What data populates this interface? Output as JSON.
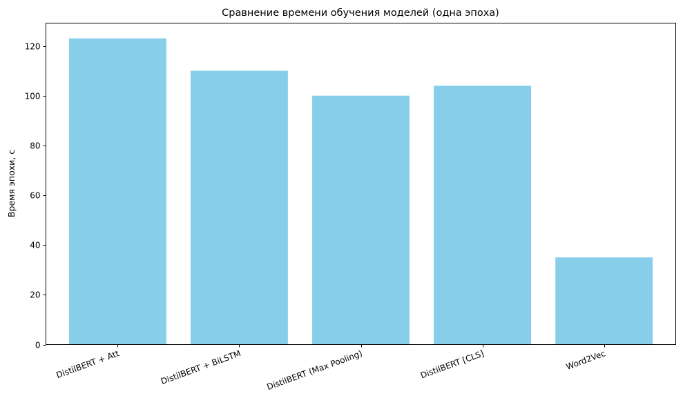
{
  "chart_data": {
    "type": "bar",
    "title": "Сравнение времени обучения моделей (одна эпоха)",
    "xlabel": "",
    "ylabel": "Время эпохи, с",
    "categories": [
      "DistilBERT + Att",
      "DistilBERT + BiLSTM",
      "DistilBERT (Max Pooling)",
      "DistilBERT [CLS]",
      "Word2Vec"
    ],
    "values": [
      123,
      110,
      100,
      104,
      35
    ],
    "ylim": [
      0,
      129.15
    ],
    "yticks": [
      0,
      20,
      40,
      60,
      80,
      100,
      120
    ],
    "x_tick_rotation_deg": 20,
    "grid": false,
    "legend": "none",
    "bar_color": "#87CEEB"
  }
}
